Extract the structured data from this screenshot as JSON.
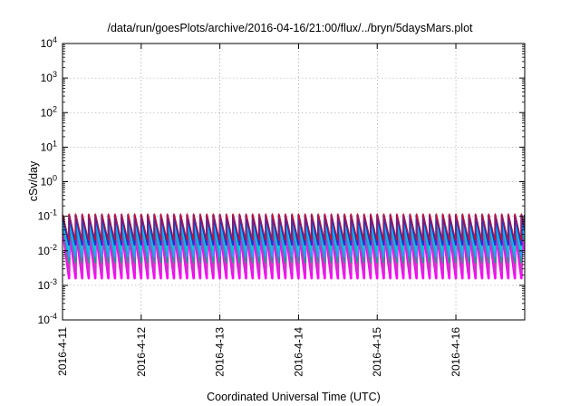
{
  "chart_data": {
    "type": "line",
    "title": "/data/run/goesPlots/archive/2016-04-16/21:00/flux/../bryn/5daysMars.plot",
    "xlabel": "Coordinated Universal Time (UTC)",
    "ylabel": "cSv/day",
    "yscale": "log",
    "ylim": [
      0.0001,
      10000
    ],
    "xlim": [
      "2016-04-11 00:00",
      "2016-04-16 21:00"
    ],
    "grid": true,
    "legend": "none",
    "y_ticks": [
      {
        "base": "10",
        "exp": "-4",
        "value": 0.0001
      },
      {
        "base": "10",
        "exp": "-3",
        "value": 0.001
      },
      {
        "base": "10",
        "exp": "-2",
        "value": 0.01
      },
      {
        "base": "10",
        "exp": "-1",
        "value": 0.1
      },
      {
        "base": "10",
        "exp": "0",
        "value": 1
      },
      {
        "base": "10",
        "exp": "1",
        "value": 10
      },
      {
        "base": "10",
        "exp": "2",
        "value": 100
      },
      {
        "base": "10",
        "exp": "3",
        "value": 1000
      },
      {
        "base": "10",
        "exp": "4",
        "value": 10000
      }
    ],
    "x_ticks": [
      {
        "label": "2016-4-11",
        "day": 0
      },
      {
        "label": "2016-4-12",
        "day": 1
      },
      {
        "label": "2016-4-13",
        "day": 2
      },
      {
        "label": "2016-4-14",
        "day": 3
      },
      {
        "label": "2016-4-15",
        "day": 4
      },
      {
        "label": "2016-4-16",
        "day": 5
      }
    ],
    "sawtooth": {
      "period_hours": 2.0,
      "start": "2016-04-11 00:00",
      "end": "2016-04-16 21:00"
    },
    "series": [
      {
        "color": "#ff00ff",
        "peak": 0.035,
        "trough": 0.0016,
        "width": 2.6,
        "lag_hours": 0.15
      },
      {
        "color": "#cc33cc",
        "peak": 0.045,
        "trough": 0.0024,
        "width": 1.8,
        "lag_hours": 0.12
      },
      {
        "color": "#ff3399",
        "peak": 0.06,
        "trough": 0.004,
        "width": 1.2,
        "lag_hours": 0.1
      },
      {
        "color": "#00aa88",
        "peak": 0.05,
        "trough": 0.0045,
        "width": 1.4,
        "lag_hours": 0.08
      },
      {
        "color": "#3399ff",
        "peak": 0.075,
        "trough": 0.007,
        "width": 2.2,
        "lag_hours": 0.05
      },
      {
        "color": "#00cccc",
        "peak": 0.09,
        "trough": 0.01,
        "width": 1.8,
        "lag_hours": 0.03
      },
      {
        "color": "#2233cc",
        "peak": 0.11,
        "trough": 0.015,
        "width": 2.2,
        "lag_hours": 0.0
      },
      {
        "color": "#ff0000",
        "peak": 0.12,
        "trough": 0.02,
        "width": 0.8,
        "lag_hours": 0.0
      }
    ]
  }
}
